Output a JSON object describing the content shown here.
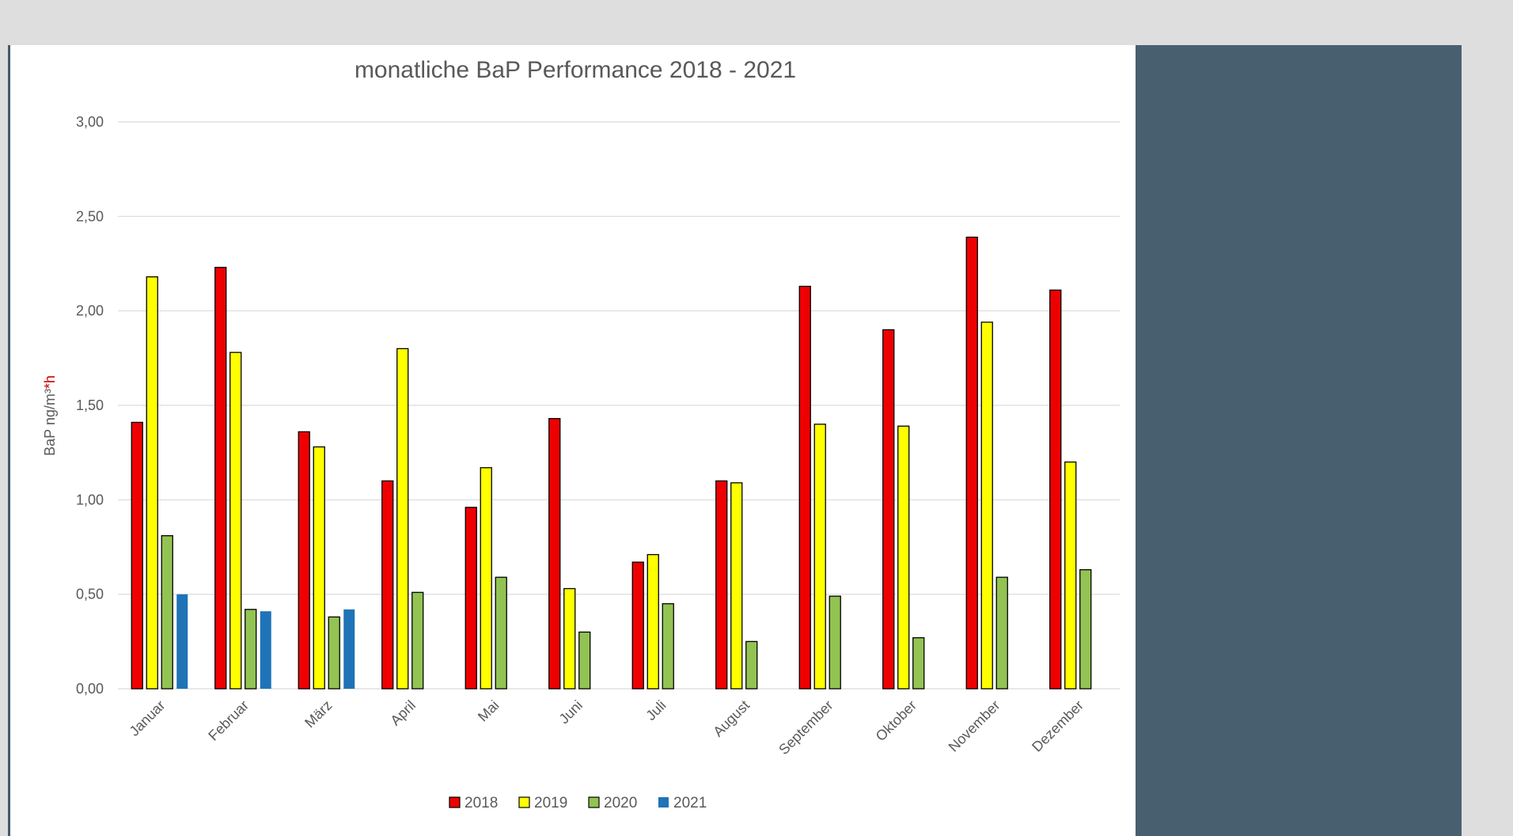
{
  "chart_data": {
    "type": "bar",
    "title": "monatliche BaP Performance 2018 - 2021",
    "ylabel_main": "BaP ng/m³",
    "ylabel_suffix": "*h",
    "ylim": [
      0,
      3
    ],
    "yticks": [
      "0,00",
      "0,50",
      "1,00",
      "1,50",
      "2,00",
      "2,50",
      "3,00"
    ],
    "grid": true,
    "legend_position": "bottom",
    "categories": [
      "Januar",
      "Februar",
      "März",
      "April",
      "Mai",
      "Juni",
      "Juli",
      "August",
      "September",
      "Oktober",
      "November",
      "Dezember"
    ],
    "series": [
      {
        "name": "2018",
        "color": "#ee0000",
        "values": [
          1.41,
          2.23,
          1.36,
          1.1,
          0.96,
          1.43,
          0.67,
          1.1,
          2.13,
          1.9,
          2.39,
          2.11
        ]
      },
      {
        "name": "2019",
        "color": "#ffff00",
        "values": [
          2.18,
          1.78,
          1.28,
          1.8,
          1.17,
          0.53,
          0.71,
          1.09,
          1.4,
          1.39,
          1.94,
          1.2
        ]
      },
      {
        "name": "2020",
        "color": "#92c353",
        "values": [
          0.81,
          0.42,
          0.38,
          0.51,
          0.59,
          0.3,
          0.45,
          0.25,
          0.49,
          0.27,
          0.59,
          0.63
        ]
      },
      {
        "name": "2021",
        "color": "#1f73b7",
        "values": [
          0.5,
          0.41,
          0.42,
          null,
          null,
          null,
          null,
          null,
          null,
          null,
          null,
          null
        ]
      }
    ],
    "colors": {
      "ylabel_suffix": "#cc0000",
      "grid": "#d9d9d9",
      "text": "#595959"
    }
  }
}
